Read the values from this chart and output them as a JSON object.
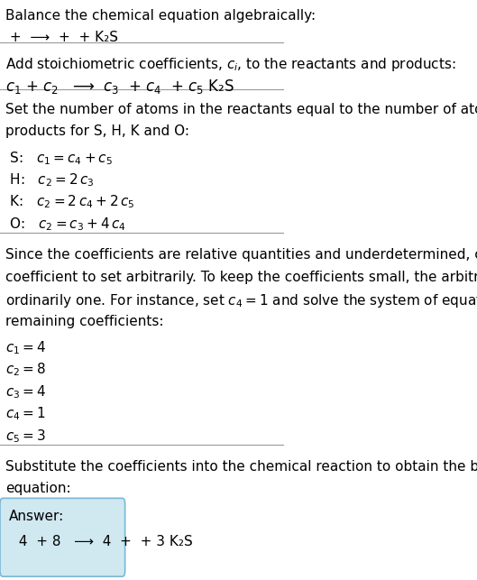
{
  "title_line": "Balance the chemical equation algebraically:",
  "reaction_line": " +  ⟶  +  + K₂S",
  "section1_header": "Add stoichiometric coefficients, $c_i$, to the reactants and products:",
  "section1_eq": "$c_1$ + $c_2$   ⟶  $c_3$  + $c_4$  + $c_5$ K₂S",
  "section2_header": "Set the number of atoms in the reactants equal to the number of atoms in the\nproducts for S, H, K and O:",
  "section2_lines": [
    " S:   $c_1 = c_4 + c_5$",
    " H:   $c_2 = 2\\,c_3$",
    " K:   $c_2 = 2\\,c_4 + 2\\,c_5$",
    " O:   $c_2 = c_3 + 4\\,c_4$"
  ],
  "section3_header": "Since the coefficients are relative quantities and underdetermined, choose a\ncoefficient to set arbitrarily. To keep the coefficients small, the arbitrary value is\nordinarily one. For instance, set $c_4 = 1$ and solve the system of equations for the\nremaining coefficients:",
  "section3_lines": [
    "$c_1 = 4$",
    "$c_2 = 8$",
    "$c_3 = 4$",
    "$c_4 = 1$",
    "$c_5 = 3$"
  ],
  "section4_header": "Substitute the coefficients into the chemical reaction to obtain the balanced\nequation:",
  "answer_label": "Answer:",
  "answer_eq": " 4  + 8   ⟶  4  +  + 3 K₂S",
  "bg_color": "#ffffff",
  "text_color": "#000000",
  "box_color": "#d0e8f0",
  "line_color": "#aaaaaa",
  "font_size": 11,
  "font_size_small": 10
}
